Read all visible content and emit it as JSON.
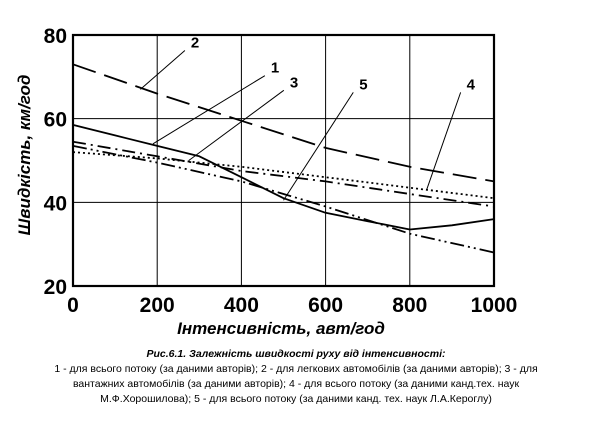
{
  "chart_data": {
    "type": "line",
    "xlabel": "Інтенсивність, авт/год",
    "ylabel": "Швидкість, км/год",
    "xlim": [
      0,
      1000
    ],
    "ylim": [
      20,
      80
    ],
    "xticks": [
      "0",
      "200",
      "400",
      "600",
      "800",
      "1000"
    ],
    "yticks": [
      "20",
      "40",
      "60",
      "80"
    ],
    "grid": true,
    "series": [
      {
        "name": "1",
        "style": "solid",
        "color": "#000000",
        "x": [
          0,
          100,
          200,
          300,
          400,
          500,
          600,
          700,
          800,
          900,
          1000
        ],
        "y": [
          58.5,
          56,
          53.5,
          51,
          46,
          41,
          37.5,
          35.5,
          33.5,
          34.5,
          36
        ]
      },
      {
        "name": "2",
        "style": "long-dash",
        "color": "#000000",
        "x": [
          0,
          200,
          400,
          600,
          800,
          1000
        ],
        "y": [
          73,
          66,
          59.5,
          53,
          48.5,
          45
        ]
      },
      {
        "name": "3",
        "style": "dash-dot",
        "color": "#000000",
        "x": [
          0,
          200,
          400,
          600,
          800,
          1000
        ],
        "y": [
          54.5,
          51,
          47.5,
          45,
          42,
          39
        ]
      },
      {
        "name": "4",
        "style": "dotted",
        "color": "#000000",
        "x": [
          0,
          200,
          400,
          600,
          800,
          1000
        ],
        "y": [
          52,
          50.5,
          48.5,
          46,
          43.5,
          41
        ]
      },
      {
        "name": "5",
        "style": "dash-dot-dot",
        "color": "#000000",
        "x": [
          0,
          200,
          400,
          600,
          800,
          1000
        ],
        "y": [
          53.5,
          49.5,
          45,
          39,
          32.5,
          28
        ]
      }
    ],
    "callouts": [
      {
        "label": "2",
        "label_x": 280,
        "label_y": 77,
        "point_x": 160,
        "point_y": 67
      },
      {
        "label": "1",
        "label_x": 470,
        "label_y": 71,
        "point_x": 190,
        "point_y": 54
      },
      {
        "label": "3",
        "label_x": 515,
        "label_y": 67.5,
        "point_x": 275,
        "point_y": 50
      },
      {
        "label": "5",
        "label_x": 680,
        "label_y": 67,
        "point_x": 500,
        "point_y": 40.5
      },
      {
        "label": "4",
        "label_x": 935,
        "label_y": 67,
        "point_x": 840,
        "point_y": 43
      }
    ]
  },
  "caption": {
    "title": "Рис.6.1. Залежність швидкості руху від інтенсивності:",
    "lines": [
      "1 - для всього потоку (за даними авторів); 2 - для легкових автомобілів (за даними авторів); 3 - для",
      "вантажних автомобілів (за даними авторів); 4 - для всього потоку (за даними канд.тех. наук",
      "М.Ф.Хорошилова); 5 - для всього потоку (за даними канд. тех. наук Л.А.Кероглу)"
    ]
  }
}
